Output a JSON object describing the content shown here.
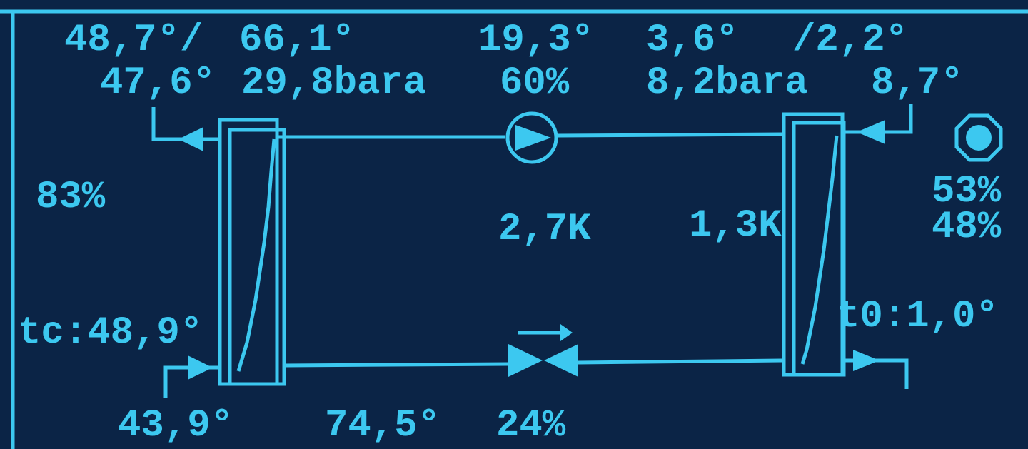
{
  "readings": {
    "top_row": [
      "48,7°/",
      "66,1°",
      "19,3°",
      "3,6°",
      "/2,2°"
    ],
    "second_row": [
      "47,6°",
      "29,8bara",
      "60%",
      "8,2bara",
      "8,7°"
    ],
    "condenser_fan": "83%",
    "evaporator_fan": [
      "53%",
      "48%"
    ],
    "superheat": [
      "2,7K",
      "1,3K"
    ],
    "tc": "tc:48,9°",
    "t0": "t0:1,0°",
    "bottom_row": [
      "43,9°",
      "74,5°",
      "24%"
    ]
  }
}
